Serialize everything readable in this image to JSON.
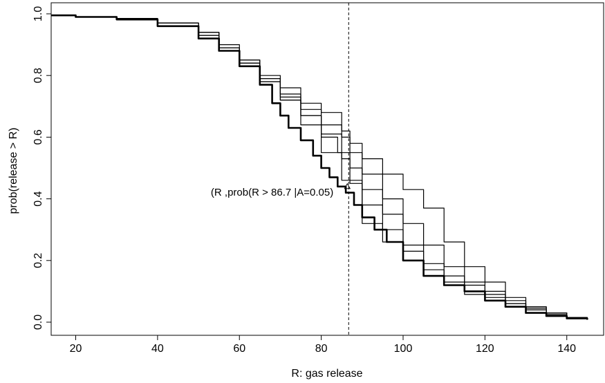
{
  "chart_data": {
    "type": "line",
    "title": "",
    "xlabel": "R: gas release",
    "ylabel": "prob(release > R)",
    "xlim": [
      14,
      149
    ],
    "ylim": [
      0,
      1
    ],
    "x_ticks": [
      20,
      40,
      60,
      80,
      100,
      120,
      140
    ],
    "y_ticks": [
      0.0,
      0.2,
      0.4,
      0.6,
      0.8,
      1.0
    ],
    "x_tick_labels": [
      "20",
      "40",
      "60",
      "80",
      "100",
      "120",
      "140"
    ],
    "y_tick_labels": [
      "0.0",
      "0.2",
      "0.4",
      "0.6",
      "0.8",
      "1.0"
    ],
    "grid": false,
    "legend": "none",
    "reference_line": {
      "x": 86.7,
      "style": "dashed"
    },
    "annotation": {
      "text": "(R ,prob(R > 86.7 |A=0.05)",
      "x": 68,
      "y": 0.41
    },
    "marker": {
      "x": 86.7,
      "y": 0.44,
      "symbol": "triangle"
    },
    "series": [
      {
        "style": "bold",
        "x": [
          14,
          20,
          30,
          40,
          50,
          55,
          60,
          65,
          68,
          70,
          72,
          75,
          78,
          80,
          82,
          84,
          86,
          88,
          90,
          93,
          96,
          100,
          105,
          110,
          115,
          120,
          125,
          130,
          135,
          140,
          145
        ],
        "values": [
          0.995,
          0.99,
          0.982,
          0.96,
          0.92,
          0.88,
          0.83,
          0.77,
          0.71,
          0.67,
          0.63,
          0.59,
          0.54,
          0.5,
          0.47,
          0.44,
          0.42,
          0.38,
          0.34,
          0.3,
          0.26,
          0.2,
          0.15,
          0.12,
          0.1,
          0.07,
          0.05,
          0.03,
          0.02,
          0.012,
          0.008
        ]
      },
      {
        "x": [
          14,
          20,
          30,
          40,
          50,
          55,
          60,
          65,
          70,
          75,
          80,
          84,
          87,
          90,
          95,
          100,
          105,
          110,
          115,
          120,
          125,
          130,
          135,
          140,
          145
        ],
        "values": [
          0.995,
          0.99,
          0.985,
          0.97,
          0.93,
          0.88,
          0.84,
          0.78,
          0.72,
          0.67,
          0.6,
          0.55,
          0.5,
          0.43,
          0.35,
          0.25,
          0.19,
          0.15,
          0.12,
          0.09,
          0.06,
          0.04,
          0.025,
          0.012,
          0.008
        ]
      },
      {
        "x": [
          14,
          20,
          30,
          40,
          50,
          55,
          60,
          65,
          70,
          75,
          80,
          85,
          87,
          90,
          95,
          100,
          105,
          110,
          115,
          120,
          125,
          130,
          135,
          140,
          145
        ],
        "values": [
          0.995,
          0.99,
          0.985,
          0.97,
          0.94,
          0.9,
          0.85,
          0.8,
          0.76,
          0.71,
          0.68,
          0.62,
          0.58,
          0.53,
          0.48,
          0.43,
          0.37,
          0.26,
          0.18,
          0.13,
          0.08,
          0.05,
          0.03,
          0.015,
          0.008
        ]
      },
      {
        "x": [
          14,
          20,
          30,
          40,
          50,
          55,
          60,
          65,
          70,
          75,
          80,
          85,
          90,
          95,
          100,
          105,
          110,
          115,
          120,
          125,
          130,
          135,
          140,
          145
        ],
        "values": [
          0.995,
          0.99,
          0.98,
          0.96,
          0.93,
          0.89,
          0.85,
          0.79,
          0.73,
          0.64,
          0.55,
          0.46,
          0.32,
          0.26,
          0.2,
          0.15,
          0.12,
          0.09,
          0.07,
          0.05,
          0.04,
          0.02,
          0.012,
          0.008
        ]
      },
      {
        "x": [
          14,
          20,
          30,
          40,
          50,
          55,
          60,
          65,
          70,
          75,
          80,
          85,
          87,
          90,
          95,
          100,
          105,
          110,
          115,
          120,
          125,
          130,
          135,
          140,
          145
        ],
        "values": [
          0.995,
          0.99,
          0.985,
          0.97,
          0.94,
          0.89,
          0.84,
          0.78,
          0.72,
          0.67,
          0.61,
          0.53,
          0.45,
          0.38,
          0.3,
          0.23,
          0.17,
          0.13,
          0.1,
          0.08,
          0.06,
          0.045,
          0.03,
          0.015,
          0.008
        ]
      },
      {
        "x": [
          14,
          20,
          30,
          40,
          50,
          55,
          60,
          65,
          70,
          75,
          80,
          85,
          87,
          90,
          95,
          100,
          105,
          110,
          115,
          120,
          125,
          130,
          135,
          140,
          145
        ],
        "values": [
          0.995,
          0.99,
          0.985,
          0.97,
          0.94,
          0.88,
          0.84,
          0.79,
          0.74,
          0.69,
          0.64,
          0.6,
          0.55,
          0.48,
          0.4,
          0.32,
          0.25,
          0.18,
          0.13,
          0.1,
          0.07,
          0.05,
          0.03,
          0.015,
          0.008
        ]
      }
    ]
  }
}
